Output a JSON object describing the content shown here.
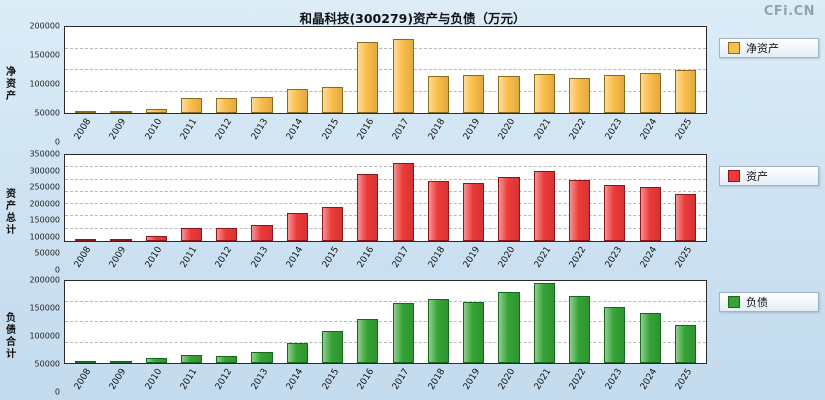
{
  "header": {
    "title": "和晶科技(300279)资产与负债（万元）",
    "watermark": "CFi.CN"
  },
  "chart_data": [
    {
      "type": "bar",
      "name": "net-assets",
      "ylabel": "净资产",
      "legend": "净资产",
      "color": "#FBBD4B",
      "border_color": "#8a6d1a",
      "categories": [
        "2008",
        "2009",
        "2010",
        "2011",
        "2012",
        "2013",
        "2014",
        "2015",
        "2016",
        "2017",
        "2018",
        "2019",
        "2020",
        "2021",
        "2022",
        "2023",
        "2024",
        "2025"
      ],
      "values": [
        1500,
        3000,
        10000,
        35000,
        35000,
        38000,
        55000,
        60000,
        165000,
        172000,
        87000,
        88000,
        87000,
        90000,
        82000,
        88000,
        93000,
        100000
      ],
      "ylim": [
        0,
        200000
      ],
      "yticks": [
        0,
        50000,
        100000,
        150000,
        200000
      ],
      "grid": "horizontal-dashed",
      "legend_position": "top-right"
    },
    {
      "type": "bar",
      "name": "total-assets",
      "ylabel": "资产总计",
      "legend": "资产",
      "color": "#ED3A3A",
      "border_color": "#8f1616",
      "categories": [
        "2008",
        "2009",
        "2010",
        "2011",
        "2012",
        "2013",
        "2014",
        "2015",
        "2016",
        "2017",
        "2018",
        "2019",
        "2020",
        "2021",
        "2022",
        "2023",
        "2024",
        "2025"
      ],
      "values": [
        8000,
        10000,
        22000,
        55000,
        52000,
        65000,
        115000,
        140000,
        272000,
        318000,
        243000,
        238000,
        262000,
        283000,
        249000,
        230000,
        220000,
        192000
      ],
      "ylim": [
        0,
        350000
      ],
      "yticks": [
        0,
        50000,
        100000,
        150000,
        200000,
        250000,
        300000,
        350000
      ],
      "grid": "horizontal-dashed",
      "legend_position": "top-right"
    },
    {
      "type": "bar",
      "name": "total-liabilities",
      "ylabel": "负债合计",
      "legend": "负债",
      "color": "#35A435",
      "border_color": "#15691c",
      "categories": [
        "2008",
        "2009",
        "2010",
        "2011",
        "2012",
        "2013",
        "2014",
        "2015",
        "2016",
        "2017",
        "2018",
        "2019",
        "2020",
        "2021",
        "2022",
        "2023",
        "2024",
        "2025"
      ],
      "values": [
        4000,
        6000,
        13000,
        20000,
        17000,
        26000,
        50000,
        78000,
        107000,
        147000,
        156000,
        148000,
        173000,
        196000,
        163000,
        137000,
        121000,
        92000
      ],
      "ylim": [
        0,
        200000
      ],
      "yticks": [
        0,
        50000,
        100000,
        150000,
        200000
      ],
      "grid": "horizontal-dashed",
      "legend_position": "top-right"
    }
  ]
}
